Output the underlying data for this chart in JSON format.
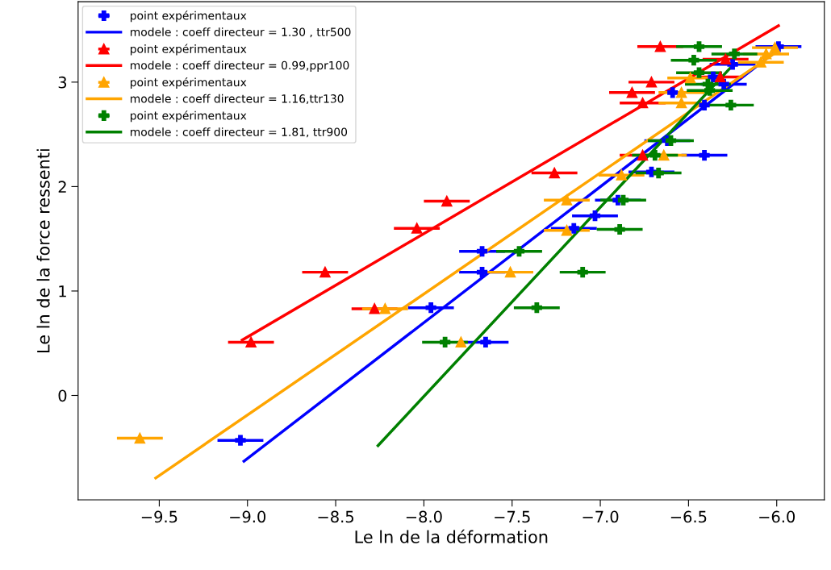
{
  "chart_data": {
    "type": "scatter",
    "xlabel": "Le ln de la déformation",
    "ylabel": "Le ln de la force ressenti",
    "xlim": [
      -9.96,
      -5.73
    ],
    "ylim": [
      -1.0,
      3.77
    ],
    "xticks": [
      {
        "value": -9.5,
        "label": "−9.5"
      },
      {
        "value": -9.0,
        "label": "−9.0"
      },
      {
        "value": -8.5,
        "label": "−8.5"
      },
      {
        "value": -8.0,
        "label": "−8.0"
      },
      {
        "value": -7.5,
        "label": "−7.5"
      },
      {
        "value": -7.0,
        "label": "−7.0"
      },
      {
        "value": -6.5,
        "label": "−6.5"
      },
      {
        "value": -6.0,
        "label": "−6.0"
      }
    ],
    "yticks": [
      0,
      1,
      2,
      3
    ],
    "grid": false,
    "legend": "top left",
    "series": [
      {
        "name": "point expérimentaux",
        "color": "#0000ff",
        "marker": "cross",
        "x": [
          -9.04,
          -7.96,
          -7.65,
          -7.67,
          -7.67,
          -7.15,
          -7.03,
          -6.9,
          -6.71,
          -6.62,
          -6.41,
          -6.59,
          -6.41,
          -6.36,
          -6.3,
          -6.25,
          -5.99
        ],
        "values": [
          -0.43,
          0.84,
          0.51,
          1.38,
          1.18,
          1.6,
          1.72,
          1.87,
          2.14,
          2.44,
          2.3,
          2.9,
          2.78,
          3.05,
          2.98,
          3.17,
          3.34
        ],
        "xerrors": [
          0.13,
          0.13,
          0.13,
          0.13,
          0.13,
          0.13,
          0.13,
          0.13,
          0.13,
          0.13,
          0.13,
          null,
          null,
          null,
          0.13,
          0.13,
          0.13
        ]
      },
      {
        "type": "line",
        "name": "modele : coeff directeur = 1.30 , ttr500",
        "color": "#0000ff",
        "x": [
          -9.02,
          -6.0
        ],
        "values": [
          -0.63,
          3.3
        ]
      },
      {
        "name": "point expérimentaux",
        "color": "#ff0000",
        "marker": "triangle",
        "x": [
          -8.98,
          -8.56,
          -8.28,
          -8.04,
          -7.87,
          -7.26,
          -6.76,
          -6.76,
          -6.82,
          -6.71,
          -6.66,
          -6.32,
          -6.29
        ],
        "values": [
          0.51,
          1.18,
          0.83,
          1.6,
          1.86,
          2.13,
          2.3,
          2.8,
          2.9,
          3.0,
          3.34,
          3.05,
          3.22
        ],
        "xerrors": [
          0.13,
          0.13,
          0.13,
          0.13,
          0.13,
          0.13,
          0.13,
          0.13,
          0.13,
          0.13,
          0.13,
          0.13,
          0.13
        ]
      },
      {
        "type": "line",
        "name": "modele : coeff directeur = 0.99,ppr100",
        "color": "#ff0000",
        "x": [
          -9.03,
          -5.99
        ],
        "values": [
          0.53,
          3.54
        ]
      },
      {
        "name": "point expérimentaux",
        "color": "#ffa500",
        "marker": "triangle",
        "x": [
          -9.61,
          -8.22,
          -7.79,
          -7.51,
          -7.19,
          -7.19,
          -6.88,
          -6.64,
          -6.54,
          -6.54,
          -6.49,
          -6.09,
          -6.06,
          -6.01
        ],
        "values": [
          -0.41,
          0.83,
          0.51,
          1.18,
          1.58,
          1.87,
          2.11,
          2.3,
          2.8,
          2.9,
          3.04,
          3.19,
          3.27,
          3.33
        ],
        "xerrors": [
          0.13,
          0.13,
          null,
          0.13,
          0.13,
          0.13,
          0.13,
          0.13,
          0.13,
          0.13,
          0.13,
          0.13,
          0.13,
          0.13
        ]
      },
      {
        "type": "line",
        "name": "modele : coeff directeur = 1.16,ttr130",
        "color": "#ffa500",
        "x": [
          -9.52,
          -6.0
        ],
        "values": [
          -0.79,
          3.29
        ]
      },
      {
        "name": "point expérimentaux",
        "color": "#008000",
        "marker": "cross",
        "x": [
          -7.88,
          -7.36,
          -7.1,
          -7.46,
          -6.89,
          -6.87,
          -6.67,
          -6.69,
          -6.6,
          -6.26,
          -6.38,
          -6.44,
          -6.24,
          -6.47,
          -6.39,
          -6.44
        ],
        "values": [
          0.51,
          0.84,
          1.18,
          1.38,
          1.59,
          1.87,
          2.13,
          2.3,
          2.44,
          2.78,
          2.92,
          3.34,
          3.27,
          3.21,
          2.98,
          3.09
        ],
        "xerrors": [
          0.13,
          0.13,
          0.13,
          0.13,
          0.13,
          0.13,
          0.13,
          0.13,
          0.13,
          0.13,
          0.13,
          0.13,
          0.13,
          0.13,
          0.13,
          0.13
        ]
      },
      {
        "type": "line",
        "name": "modele : coeff directeur = 1.81, ttr900",
        "color": "#008000",
        "x": [
          -8.26,
          -6.25
        ],
        "values": [
          -0.48,
          3.16
        ]
      }
    ]
  }
}
